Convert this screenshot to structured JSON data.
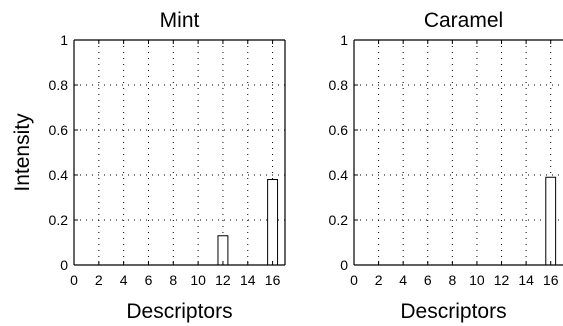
{
  "chart_data": [
    {
      "type": "bar",
      "title": "Mint",
      "xlabel": "Descriptors",
      "ylabel": "Intensity",
      "x": [
        1,
        2,
        3,
        4,
        5,
        6,
        7,
        8,
        9,
        10,
        11,
        12,
        13,
        14,
        15,
        16,
        17
      ],
      "values": [
        0,
        0,
        0,
        0,
        0,
        0,
        0,
        0,
        0,
        0,
        0,
        0.13,
        0,
        0,
        0,
        0.38,
        0
      ],
      "xlim": [
        0,
        17
      ],
      "ylim": [
        0,
        1
      ],
      "xticks": [
        0,
        2,
        4,
        6,
        8,
        10,
        12,
        14,
        16
      ],
      "yticks": [
        0,
        0.2,
        0.4,
        0.6,
        0.8,
        1
      ],
      "xtick_labels": [
        "0",
        "2",
        "4",
        "6",
        "8",
        "10",
        "12",
        "14",
        "16"
      ],
      "ytick_labels": [
        "0",
        "0.2",
        "0.4",
        "0.6",
        "0.8",
        "1"
      ],
      "grid": true
    },
    {
      "type": "bar",
      "title": "Caramel",
      "xlabel": "Descriptors",
      "ylabel": "",
      "x": [
        1,
        2,
        3,
        4,
        5,
        6,
        7,
        8,
        9,
        10,
        11,
        12,
        13,
        14,
        15,
        16,
        17
      ],
      "values": [
        0,
        0,
        0,
        0,
        0,
        0,
        0,
        0,
        0,
        0,
        0,
        0,
        0,
        0,
        0,
        0.39,
        0
      ],
      "xlim": [
        0,
        17
      ],
      "ylim": [
        0,
        1
      ],
      "xticks": [
        0,
        2,
        4,
        6,
        8,
        10,
        12,
        14,
        16
      ],
      "yticks": [
        0,
        0.2,
        0.4,
        0.6,
        0.8,
        1
      ],
      "xtick_labels": [
        "0",
        "2",
        "4",
        "6",
        "8",
        "10",
        "12",
        "14",
        "16"
      ],
      "ytick_labels": [
        "0",
        "0.2",
        "0.4",
        "0.6",
        "0.8",
        "1"
      ],
      "grid": true
    }
  ]
}
